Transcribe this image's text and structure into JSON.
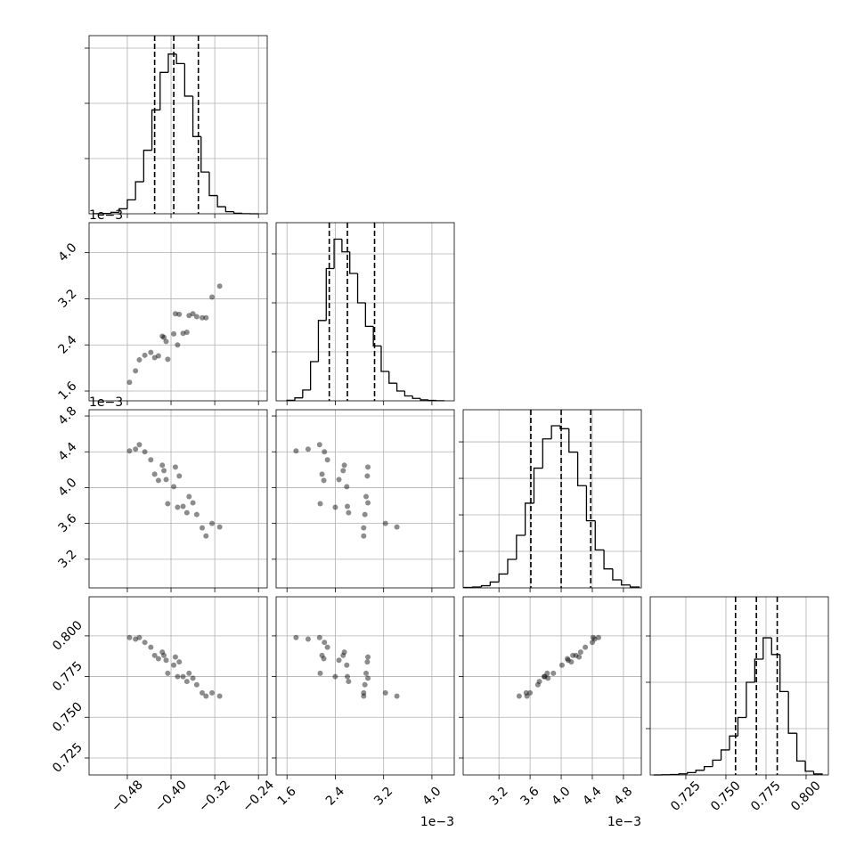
{
  "chart_data": [
    {
      "type": "histogram",
      "color": "#000000",
      "grid": true,
      "bins": [
        -0.54,
        -0.525,
        -0.51,
        -0.495,
        -0.48,
        -0.465,
        -0.45,
        -0.435,
        -0.42,
        -0.405,
        -0.39,
        -0.375,
        -0.36,
        -0.345,
        -0.33,
        -0.315,
        -0.3,
        -0.285,
        -0.27,
        -0.255,
        -0.24
      ],
      "counts": [
        1,
        3,
        13,
        45,
        126,
        290,
        575,
        940,
        1280,
        1446,
        1360,
        1065,
        699,
        378,
        165,
        64,
        19,
        5,
        1,
        0
      ],
      "quantiles": [
        -0.43,
        -0.395,
        -0.35
      ],
      "xlim": [
        -0.55,
        -0.224
      ],
      "xticks": [
        {
          "value": -0.48,
          "label": "−0.48"
        },
        {
          "value": -0.4,
          "label": "−0.40"
        },
        {
          "value": -0.32,
          "label": "−0.32"
        },
        {
          "value": -0.24,
          "label": "−0.24"
        }
      ],
      "ylim": [
        0,
        1613
      ],
      "yticks": [
        500,
        1000,
        1500
      ]
    },
    {
      "type": "scatter",
      "color": "#000000",
      "grid": true,
      "y_offset_label": "1e−3",
      "x": [
        -0.395,
        -0.378,
        -0.413,
        -0.36,
        -0.43,
        -0.343,
        -0.448,
        -0.385,
        -0.406,
        -0.367,
        -0.423,
        -0.325,
        -0.465,
        -0.388,
        -0.416,
        -0.353,
        -0.437,
        -0.371,
        -0.409,
        -0.311,
        -0.476,
        -0.392,
        -0.336,
        -0.458
      ],
      "y": [
        2.59,
        2.6,
        2.53,
        2.94,
        2.18,
        2.87,
        2.22,
        2.93,
        2.15,
        2.91,
        2.21,
        3.23,
        1.95,
        2.4,
        2.55,
        2.89,
        2.27,
        2.62,
        2.46,
        3.42,
        1.75,
        2.94,
        2.87,
        2.14
      ],
      "xlim": [
        -0.55,
        -0.224
      ],
      "xticks": [
        {
          "value": -0.48,
          "label": "−0.48"
        },
        {
          "value": -0.4,
          "label": "−0.40"
        },
        {
          "value": -0.32,
          "label": "−0.32"
        },
        {
          "value": -0.24,
          "label": "−0.24"
        }
      ],
      "ylim": [
        1.43,
        4.52
      ],
      "yticks": [
        1.6,
        2.4,
        3.2,
        {
          "value": 4,
          "label": "4.0"
        }
      ]
    },
    {
      "type": "histogram",
      "color": "#000000",
      "grid": true,
      "bins": [
        1.6,
        1.73,
        1.86,
        1.99,
        2.12,
        2.25,
        2.38,
        2.51,
        2.64,
        2.77,
        2.9,
        3.03,
        3.16,
        3.29,
        3.42,
        3.55,
        3.68,
        3.81,
        3.94,
        4.07,
        4.2
      ],
      "counts": [
        5,
        30,
        110,
        400,
        820,
        1350,
        1650,
        1520,
        1300,
        1000,
        760,
        560,
        300,
        180,
        100,
        50,
        25,
        10,
        4,
        1
      ],
      "quantiles": [
        2.3,
        2.6,
        3.05
      ],
      "xlim": [
        1.42,
        4.37
      ],
      "xticks": [
        1.6,
        2.4,
        3.2,
        {
          "value": 4,
          "label": "4.0"
        }
      ],
      "ylim": [
        0,
        1818
      ],
      "yticks": [
        500,
        1000,
        1500
      ]
    },
    {
      "type": "scatter",
      "color": "#000000",
      "grid": true,
      "y_offset_label": "1e−3",
      "x": [
        -0.395,
        -0.378,
        -0.413,
        -0.36,
        -0.43,
        -0.343,
        -0.448,
        -0.385,
        -0.406,
        -0.367,
        -0.423,
        -0.325,
        -0.465,
        -0.388,
        -0.416,
        -0.353,
        -0.437,
        -0.371,
        -0.409,
        -0.311,
        -0.476,
        -0.392,
        -0.336,
        -0.458
      ],
      "y": [
        4.01,
        3.79,
        4.19,
        3.83,
        4.15,
        3.55,
        4.4,
        4.13,
        3.82,
        3.9,
        4.08,
        3.6,
        4.43,
        3.78,
        4.25,
        3.7,
        4.31,
        3.72,
        4.09,
        3.56,
        4.41,
        4.23,
        3.46,
        4.48
      ],
      "xlim": [
        -0.55,
        -0.224
      ],
      "xticks": [
        {
          "value": -0.48,
          "label": "−0.48"
        },
        {
          "value": -0.4,
          "label": "−0.40"
        },
        {
          "value": -0.32,
          "label": "−0.32"
        },
        {
          "value": -0.24,
          "label": "−0.24"
        }
      ],
      "ylim": [
        2.88,
        4.87
      ],
      "yticks": [
        3.2,
        3.6,
        {
          "value": 4,
          "label": "4.0"
        },
        4.4,
        4.8
      ]
    },
    {
      "type": "scatter",
      "color": "#000000",
      "grid": true,
      "x": [
        2.59,
        2.6,
        2.53,
        2.94,
        2.18,
        2.87,
        2.22,
        2.93,
        2.15,
        2.91,
        2.21,
        3.23,
        1.95,
        2.4,
        2.55,
        2.89,
        2.27,
        2.62,
        2.46,
        3.42,
        1.75,
        2.94,
        2.87,
        2.14
      ],
      "y": [
        4.01,
        3.79,
        4.19,
        3.83,
        4.15,
        3.55,
        4.4,
        4.13,
        3.82,
        3.9,
        4.08,
        3.6,
        4.43,
        3.78,
        4.25,
        3.7,
        4.31,
        3.72,
        4.09,
        3.56,
        4.41,
        4.23,
        3.46,
        4.48
      ],
      "xlim": [
        1.42,
        4.37
      ],
      "xticks": [
        1.6,
        2.4,
        3.2,
        {
          "value": 4,
          "label": "4.0"
        }
      ],
      "ylim": [
        2.88,
        4.87
      ],
      "yticks": [
        3.2,
        3.6,
        {
          "value": 4,
          "label": "4.0"
        },
        4.4,
        4.8
      ]
    },
    {
      "type": "histogram",
      "color": "#000000",
      "grid": true,
      "bins": [
        2.75,
        2.8625,
        2.975,
        3.0875,
        3.2,
        3.3125,
        3.425,
        3.5375,
        3.65,
        3.7625,
        3.875,
        3.9875,
        4.1,
        4.2125,
        4.325,
        4.4375,
        4.55,
        4.6625,
        4.775,
        4.8875,
        5.0
      ],
      "counts": [
        3,
        6,
        15,
        40,
        95,
        195,
        360,
        580,
        820,
        1020,
        1110,
        1090,
        930,
        700,
        460,
        260,
        130,
        55,
        20,
        6
      ],
      "quantiles": [
        3.61,
        4.0,
        4.38
      ],
      "xlim": [
        2.74,
        5.03
      ],
      "xticks": [
        3.2,
        3.6,
        {
          "value": 4,
          "label": "4.0"
        },
        4.4,
        4.8
      ],
      "ylim": [
        0,
        1220
      ],
      "yticks": [
        250,
        500,
        750,
        1000
      ]
    },
    {
      "type": "scatter",
      "color": "#000000",
      "grid": true,
      "x": [
        -0.395,
        -0.378,
        -0.413,
        -0.36,
        -0.43,
        -0.343,
        -0.448,
        -0.385,
        -0.406,
        -0.367,
        -0.423,
        -0.325,
        -0.465,
        -0.388,
        -0.416,
        -0.353,
        -0.437,
        -0.371,
        -0.409,
        -0.311,
        -0.476,
        -0.392,
        -0.336,
        -0.458
      ],
      "y": [
        0.782,
        0.775,
        0.788,
        0.774,
        0.788,
        0.765,
        0.796,
        0.784,
        0.777,
        0.777,
        0.786,
        0.765,
        0.798,
        0.775,
        0.79,
        0.77,
        0.793,
        0.772,
        0.785,
        0.763,
        0.799,
        0.787,
        0.763,
        0.799
      ],
      "xlim": [
        -0.55,
        -0.224
      ],
      "xticks": [
        {
          "value": -0.48,
          "label": "−0.48"
        },
        {
          "value": -0.4,
          "label": "−0.40"
        },
        {
          "value": -0.32,
          "label": "−0.32"
        },
        {
          "value": -0.24,
          "label": "−0.24"
        }
      ],
      "ylim": [
        0.7146,
        0.824
      ],
      "yticks": [
        0.725,
        {
          "value": 0.75,
          "label": "0.750"
        },
        0.775,
        {
          "value": 0.8,
          "label": "0.800"
        }
      ]
    },
    {
      "type": "scatter",
      "color": "#000000",
      "grid": true,
      "x_offset_label": "1e−3",
      "x": [
        2.59,
        2.6,
        2.53,
        2.94,
        2.18,
        2.87,
        2.22,
        2.93,
        2.15,
        2.91,
        2.21,
        3.23,
        1.95,
        2.4,
        2.55,
        2.89,
        2.27,
        2.62,
        2.46,
        3.42,
        1.75,
        2.94,
        2.87,
        2.14
      ],
      "y": [
        0.782,
        0.775,
        0.788,
        0.774,
        0.788,
        0.765,
        0.796,
        0.784,
        0.777,
        0.777,
        0.786,
        0.765,
        0.798,
        0.775,
        0.79,
        0.77,
        0.793,
        0.772,
        0.785,
        0.763,
        0.799,
        0.787,
        0.763,
        0.799
      ],
      "xlim": [
        1.42,
        4.37
      ],
      "xticks": [
        1.6,
        2.4,
        3.2,
        {
          "value": 4,
          "label": "4.0"
        }
      ],
      "ylim": [
        0.7146,
        0.824
      ],
      "yticks": [
        0.725,
        {
          "value": 0.75,
          "label": "0.750"
        },
        0.775,
        {
          "value": 0.8,
          "label": "0.800"
        }
      ]
    },
    {
      "type": "scatter",
      "color": "#000000",
      "grid": true,
      "x_offset_label": "1e−3",
      "x": [
        4.01,
        3.79,
        4.19,
        3.83,
        4.15,
        3.55,
        4.4,
        4.13,
        3.82,
        3.9,
        4.08,
        3.6,
        4.43,
        3.78,
        4.25,
        3.7,
        4.31,
        3.72,
        4.09,
        3.56,
        4.41,
        4.23,
        3.46,
        4.48
      ],
      "y": [
        0.782,
        0.775,
        0.788,
        0.774,
        0.788,
        0.765,
        0.796,
        0.784,
        0.777,
        0.777,
        0.786,
        0.765,
        0.798,
        0.775,
        0.79,
        0.77,
        0.793,
        0.772,
        0.785,
        0.763,
        0.799,
        0.787,
        0.763,
        0.799
      ],
      "xlim": [
        2.74,
        5.03
      ],
      "xticks": [
        3.2,
        3.6,
        {
          "value": 4,
          "label": "4.0"
        },
        4.4,
        4.8
      ],
      "ylim": [
        0.7146,
        0.824
      ],
      "yticks": [
        0.725,
        {
          "value": 0.75,
          "label": "0.750"
        },
        0.775,
        {
          "value": 0.8,
          "label": "0.800"
        }
      ]
    },
    {
      "type": "histogram",
      "color": "#000000",
      "grid": true,
      "bins": [
        0.705,
        0.71025,
        0.7155,
        0.72075,
        0.726,
        0.73125,
        0.7365,
        0.74175,
        0.747,
        0.75225,
        0.7575,
        0.76275,
        0.768,
        0.77325,
        0.7785,
        0.78375,
        0.789,
        0.79425,
        0.7995,
        0.80475,
        0.81
      ],
      "counts": [
        0,
        2,
        5,
        12,
        25,
        50,
        90,
        160,
        270,
        420,
        620,
        1000,
        1250,
        1480,
        1300,
        900,
        450,
        150,
        40,
        10
      ],
      "quantiles": [
        0.756,
        0.769,
        0.782
      ],
      "xlim": [
        0.7028,
        0.8139
      ],
      "xticks": [
        0.725,
        {
          "value": 0.75,
          "label": "0.750"
        },
        0.775,
        {
          "value": 0.8,
          "label": "0.800"
        }
      ],
      "ylim": [
        0,
        1923
      ],
      "yticks": [
        500,
        1000,
        1500
      ]
    }
  ]
}
